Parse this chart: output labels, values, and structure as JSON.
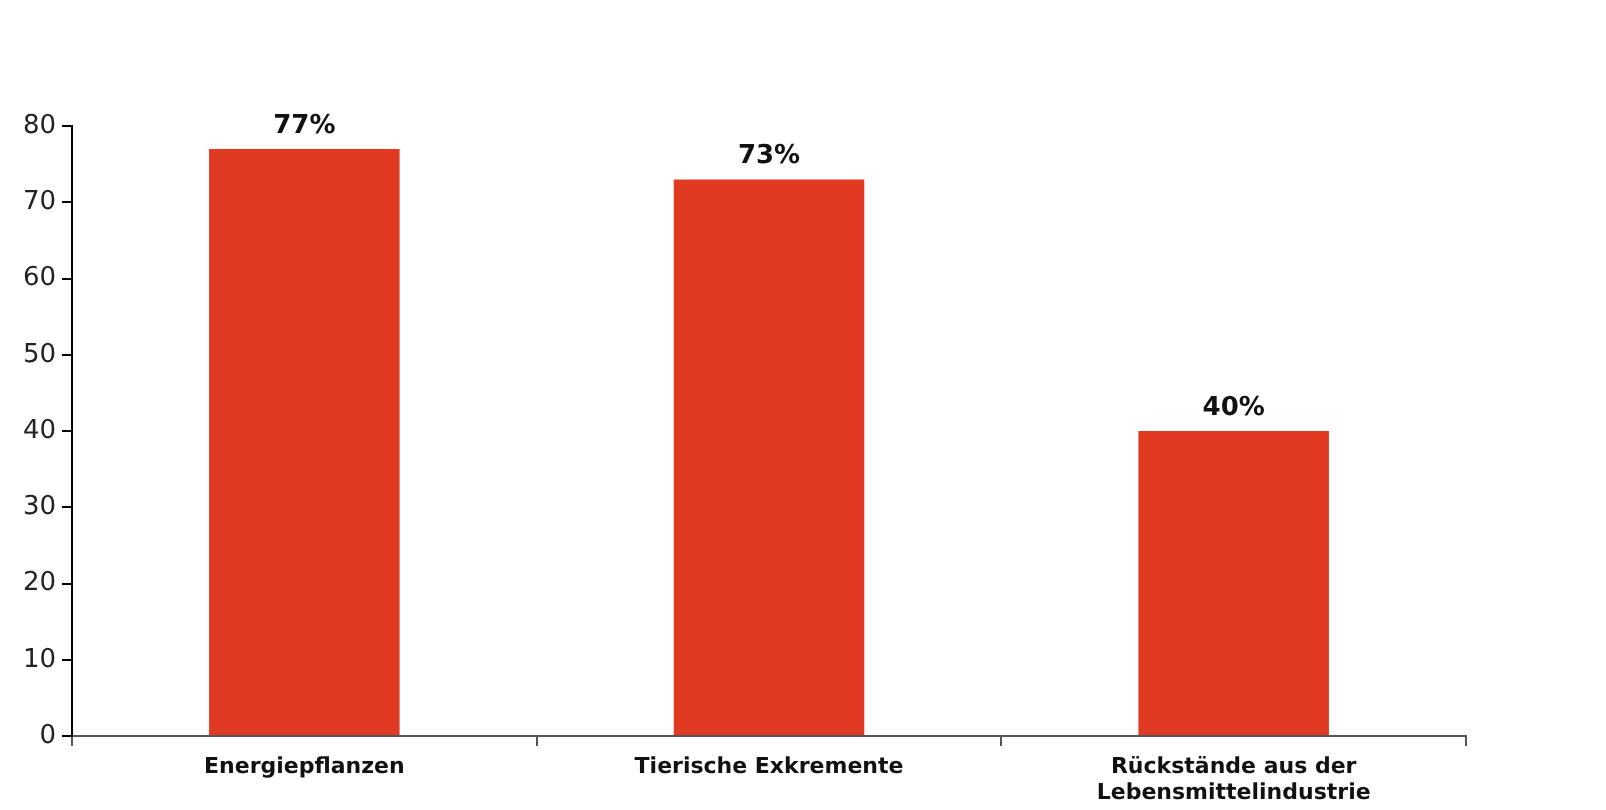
{
  "chart_data": {
    "type": "bar",
    "categories": [
      "Energiepflanzen",
      "Tierische Exkremente",
      "Rückstände aus der Lebensmittelindustrie"
    ],
    "values": [
      77,
      73,
      40
    ],
    "value_labels": [
      "77%",
      "73%",
      "40%"
    ],
    "color": "#e03a22",
    "ylim": [
      0,
      80
    ],
    "yticks": [
      0,
      10,
      20,
      30,
      40,
      50,
      60,
      70,
      80
    ],
    "grid": false,
    "legend": false
  }
}
